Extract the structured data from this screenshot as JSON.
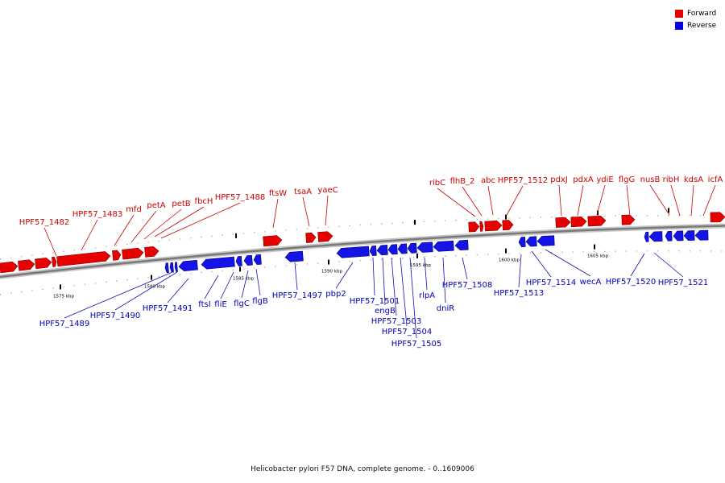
{
  "legend": [
    {
      "label": "Forward",
      "color": "#e60000"
    },
    {
      "label": "Reverse",
      "color": "#0000e6"
    }
  ],
  "caption": "Helicobacter pylori F57 DNA, complete genome. - 0..1609006",
  "colors": {
    "forward": "#e60000",
    "reverse": "#1414e6",
    "forward_label": "#cc0000",
    "reverse_label": "#0000b4",
    "backbone": "#7a7a7a"
  },
  "scale_labels": [
    "1575 kbp",
    "1580 kbp",
    "1585 kbp",
    "1590 kbp",
    "1595 kbp",
    "1600 kbp",
    "1605 kbp"
  ],
  "forward_genes": [
    "HPF57_1482",
    "HPF57_1483",
    "mfd",
    "petA",
    "petB",
    "fbcH",
    "HPF57_1488",
    "ftsW",
    "tsaA",
    "yaeC",
    "ribC",
    "flhB_2",
    "abc",
    "HPF57_1512",
    "pdxJ",
    "pdxA",
    "ydiE",
    "flgG",
    "nusB",
    "ribH",
    "kdsA",
    "icfA"
  ],
  "reverse_genes": [
    "HPF57_1489",
    "HPF57_1490",
    "HPF57_1491",
    "ftsI",
    "fliE",
    "flgC",
    "flgB",
    "HPF57_1497",
    "pbp2",
    "HPF57_1501",
    "engB",
    "HPF57_1503",
    "HPF57_1504",
    "HPF57_1505",
    "rlpA",
    "dniR",
    "HPF57_1508",
    "HPF57_1513",
    "HPF57_1514",
    "wecA",
    "HPF57_1520",
    "HPF57_1521"
  ]
}
